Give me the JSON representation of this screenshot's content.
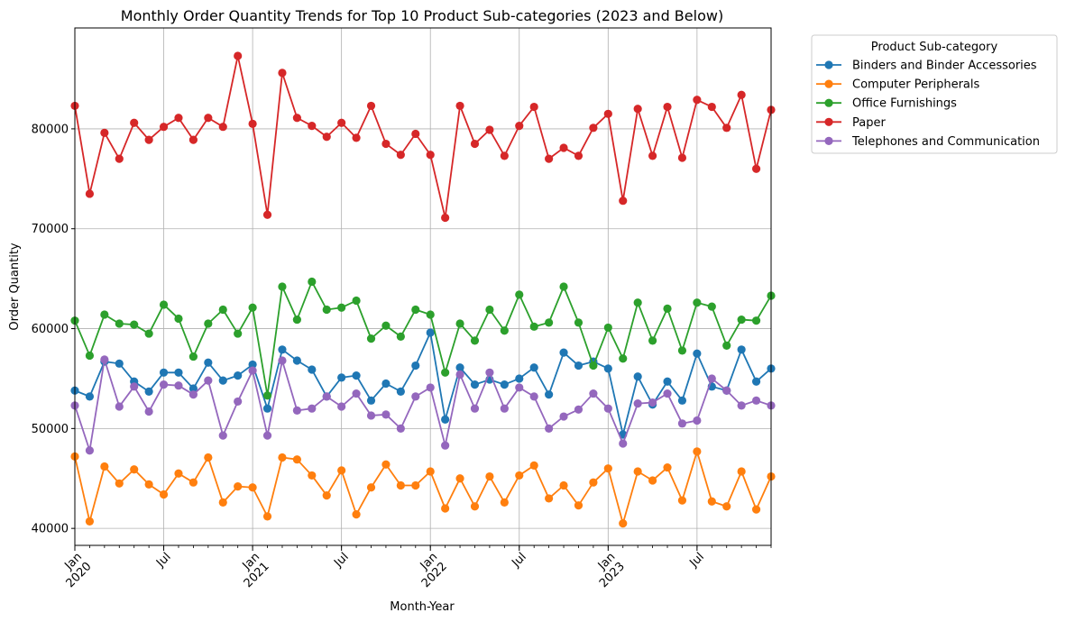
{
  "chart_data": {
    "type": "line",
    "title": "Monthly Order Quantity Trends for Top 10 Product Sub-categories (2023 and Below)",
    "xlabel": "Month-Year",
    "ylabel": "Order Quantity",
    "ylim": [
      38300,
      90100
    ],
    "yticks": [
      40000,
      50000,
      60000,
      70000,
      80000
    ],
    "x_ticks_major": [
      {
        "month_index": 0,
        "line1": "Jan",
        "line2": "2020"
      },
      {
        "month_index": 6,
        "line1": "Jul",
        "line2": ""
      },
      {
        "month_index": 12,
        "line1": "Jan",
        "line2": "2021"
      },
      {
        "month_index": 18,
        "line1": "Jul",
        "line2": ""
      },
      {
        "month_index": 24,
        "line1": "Jan",
        "line2": "2022"
      },
      {
        "month_index": 30,
        "line1": "Jul",
        "line2": ""
      },
      {
        "month_index": 36,
        "line1": "Jan",
        "line2": "2023"
      },
      {
        "month_index": 42,
        "line1": "Jul",
        "line2": ""
      }
    ],
    "x_range": [
      "2020-01",
      "2023-12"
    ],
    "grid": true,
    "legend": {
      "title": "Product Sub-category",
      "placement": "outside-upper-right"
    },
    "series": [
      {
        "name": "Binders and Binder Accessories",
        "color": "#1f77b4",
        "values": [
          53800,
          53200,
          56700,
          56500,
          54700,
          53700,
          55600,
          55600,
          54000,
          56600,
          54800,
          55300,
          56400,
          52000,
          57900,
          56800,
          55900,
          53200,
          55100,
          55300,
          52800,
          54500,
          53700,
          56300,
          59600,
          50900,
          56100,
          54400,
          54900,
          54400,
          55000,
          56100,
          53400,
          57600,
          56300,
          56700,
          56000,
          49400,
          55200,
          52400,
          54700,
          52800,
          57500,
          54200,
          53800,
          57900,
          54700,
          56000
        ]
      },
      {
        "name": "Computer Peripherals",
        "color": "#ff7f0e",
        "values": [
          47200,
          40700,
          46200,
          44500,
          45900,
          44400,
          43400,
          45500,
          44600,
          47100,
          42600,
          44200,
          44100,
          41200,
          47100,
          46900,
          45300,
          43300,
          45800,
          41400,
          44100,
          46400,
          44300,
          44300,
          45700,
          42000,
          45000,
          42200,
          45200,
          42600,
          45300,
          46300,
          43000,
          44300,
          42300,
          44600,
          46000,
          40500,
          45700,
          44800,
          46100,
          42800,
          47700,
          42700,
          42200,
          45700,
          41900,
          45200
        ]
      },
      {
        "name": "Office Furnishings",
        "color": "#2ca02c",
        "values": [
          60800,
          57300,
          61400,
          60500,
          60400,
          59500,
          62400,
          61000,
          57200,
          60500,
          61900,
          59500,
          62100,
          53300,
          64200,
          60900,
          64700,
          61900,
          62100,
          62800,
          59000,
          60300,
          59200,
          61900,
          61400,
          55600,
          60500,
          58800,
          61900,
          59800,
          63400,
          60200,
          60600,
          64200,
          60600,
          56300,
          60100,
          57000,
          62600,
          58800,
          62000,
          57800,
          62600,
          62200,
          58300,
          60900,
          60800,
          63300
        ]
      },
      {
        "name": "Paper",
        "color": "#d62728",
        "values": [
          82300,
          73500,
          79600,
          77000,
          80600,
          78900,
          80200,
          81100,
          78900,
          81100,
          80200,
          87300,
          80500,
          71400,
          85600,
          81100,
          80300,
          79200,
          80600,
          79100,
          82300,
          78500,
          77400,
          79500,
          77400,
          71100,
          82300,
          78500,
          79900,
          77300,
          80300,
          82200,
          77000,
          78100,
          77300,
          80100,
          81500,
          72800,
          82000,
          77300,
          82200,
          77100,
          82900,
          82200,
          80100,
          83400,
          76000,
          81900
        ]
      },
      {
        "name": "Telephones and Communication",
        "color": "#9467bd",
        "values": [
          52300,
          47800,
          56900,
          52200,
          54200,
          51700,
          54400,
          54300,
          53400,
          54800,
          49300,
          52700,
          55800,
          49300,
          56800,
          51800,
          52000,
          53200,
          52200,
          53500,
          51300,
          51400,
          50000,
          53200,
          54100,
          48300,
          55400,
          52000,
          55600,
          52000,
          54100,
          53200,
          50000,
          51200,
          51900,
          53500,
          52000,
          48500,
          52500,
          52600,
          53500,
          50500,
          50800,
          55000,
          53800,
          52300,
          52800,
          52300
        ]
      }
    ]
  }
}
